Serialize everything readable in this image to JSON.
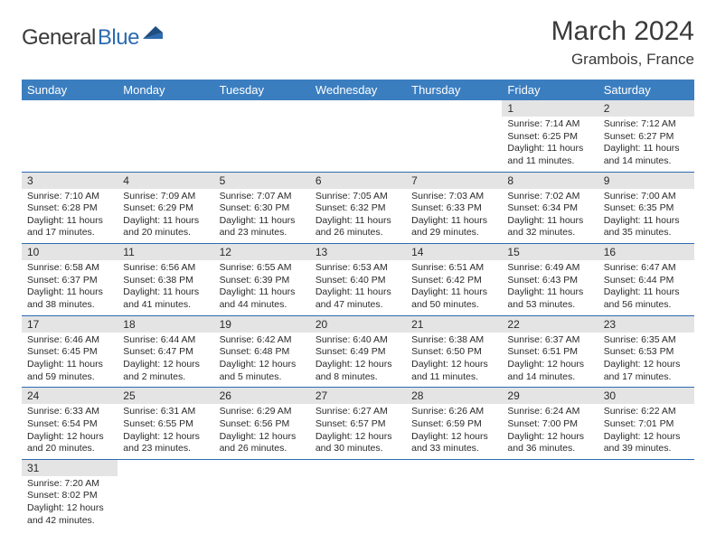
{
  "logo": {
    "general": "General",
    "blue": "Blue"
  },
  "title": {
    "month": "March 2024",
    "location": "Grambois, France"
  },
  "weekdays": [
    "Sunday",
    "Monday",
    "Tuesday",
    "Wednesday",
    "Thursday",
    "Friday",
    "Saturday"
  ],
  "colors": {
    "header_bg": "#3b7ec0",
    "header_fg": "#ffffff",
    "daynum_bg": "#e4e4e4",
    "rule": "#2d6bb0",
    "logo_gray": "#3a3a3a",
    "logo_blue": "#2d6bb0"
  },
  "weeks": [
    [
      {
        "n": "",
        "lines": []
      },
      {
        "n": "",
        "lines": []
      },
      {
        "n": "",
        "lines": []
      },
      {
        "n": "",
        "lines": []
      },
      {
        "n": "",
        "lines": []
      },
      {
        "n": "1",
        "lines": [
          "Sunrise: 7:14 AM",
          "Sunset: 6:25 PM",
          "Daylight: 11 hours",
          "and 11 minutes."
        ]
      },
      {
        "n": "2",
        "lines": [
          "Sunrise: 7:12 AM",
          "Sunset: 6:27 PM",
          "Daylight: 11 hours",
          "and 14 minutes."
        ]
      }
    ],
    [
      {
        "n": "3",
        "lines": [
          "Sunrise: 7:10 AM",
          "Sunset: 6:28 PM",
          "Daylight: 11 hours",
          "and 17 minutes."
        ]
      },
      {
        "n": "4",
        "lines": [
          "Sunrise: 7:09 AM",
          "Sunset: 6:29 PM",
          "Daylight: 11 hours",
          "and 20 minutes."
        ]
      },
      {
        "n": "5",
        "lines": [
          "Sunrise: 7:07 AM",
          "Sunset: 6:30 PM",
          "Daylight: 11 hours",
          "and 23 minutes."
        ]
      },
      {
        "n": "6",
        "lines": [
          "Sunrise: 7:05 AM",
          "Sunset: 6:32 PM",
          "Daylight: 11 hours",
          "and 26 minutes."
        ]
      },
      {
        "n": "7",
        "lines": [
          "Sunrise: 7:03 AM",
          "Sunset: 6:33 PM",
          "Daylight: 11 hours",
          "and 29 minutes."
        ]
      },
      {
        "n": "8",
        "lines": [
          "Sunrise: 7:02 AM",
          "Sunset: 6:34 PM",
          "Daylight: 11 hours",
          "and 32 minutes."
        ]
      },
      {
        "n": "9",
        "lines": [
          "Sunrise: 7:00 AM",
          "Sunset: 6:35 PM",
          "Daylight: 11 hours",
          "and 35 minutes."
        ]
      }
    ],
    [
      {
        "n": "10",
        "lines": [
          "Sunrise: 6:58 AM",
          "Sunset: 6:37 PM",
          "Daylight: 11 hours",
          "and 38 minutes."
        ]
      },
      {
        "n": "11",
        "lines": [
          "Sunrise: 6:56 AM",
          "Sunset: 6:38 PM",
          "Daylight: 11 hours",
          "and 41 minutes."
        ]
      },
      {
        "n": "12",
        "lines": [
          "Sunrise: 6:55 AM",
          "Sunset: 6:39 PM",
          "Daylight: 11 hours",
          "and 44 minutes."
        ]
      },
      {
        "n": "13",
        "lines": [
          "Sunrise: 6:53 AM",
          "Sunset: 6:40 PM",
          "Daylight: 11 hours",
          "and 47 minutes."
        ]
      },
      {
        "n": "14",
        "lines": [
          "Sunrise: 6:51 AM",
          "Sunset: 6:42 PM",
          "Daylight: 11 hours",
          "and 50 minutes."
        ]
      },
      {
        "n": "15",
        "lines": [
          "Sunrise: 6:49 AM",
          "Sunset: 6:43 PM",
          "Daylight: 11 hours",
          "and 53 minutes."
        ]
      },
      {
        "n": "16",
        "lines": [
          "Sunrise: 6:47 AM",
          "Sunset: 6:44 PM",
          "Daylight: 11 hours",
          "and 56 minutes."
        ]
      }
    ],
    [
      {
        "n": "17",
        "lines": [
          "Sunrise: 6:46 AM",
          "Sunset: 6:45 PM",
          "Daylight: 11 hours",
          "and 59 minutes."
        ]
      },
      {
        "n": "18",
        "lines": [
          "Sunrise: 6:44 AM",
          "Sunset: 6:47 PM",
          "Daylight: 12 hours",
          "and 2 minutes."
        ]
      },
      {
        "n": "19",
        "lines": [
          "Sunrise: 6:42 AM",
          "Sunset: 6:48 PM",
          "Daylight: 12 hours",
          "and 5 minutes."
        ]
      },
      {
        "n": "20",
        "lines": [
          "Sunrise: 6:40 AM",
          "Sunset: 6:49 PM",
          "Daylight: 12 hours",
          "and 8 minutes."
        ]
      },
      {
        "n": "21",
        "lines": [
          "Sunrise: 6:38 AM",
          "Sunset: 6:50 PM",
          "Daylight: 12 hours",
          "and 11 minutes."
        ]
      },
      {
        "n": "22",
        "lines": [
          "Sunrise: 6:37 AM",
          "Sunset: 6:51 PM",
          "Daylight: 12 hours",
          "and 14 minutes."
        ]
      },
      {
        "n": "23",
        "lines": [
          "Sunrise: 6:35 AM",
          "Sunset: 6:53 PM",
          "Daylight: 12 hours",
          "and 17 minutes."
        ]
      }
    ],
    [
      {
        "n": "24",
        "lines": [
          "Sunrise: 6:33 AM",
          "Sunset: 6:54 PM",
          "Daylight: 12 hours",
          "and 20 minutes."
        ]
      },
      {
        "n": "25",
        "lines": [
          "Sunrise: 6:31 AM",
          "Sunset: 6:55 PM",
          "Daylight: 12 hours",
          "and 23 minutes."
        ]
      },
      {
        "n": "26",
        "lines": [
          "Sunrise: 6:29 AM",
          "Sunset: 6:56 PM",
          "Daylight: 12 hours",
          "and 26 minutes."
        ]
      },
      {
        "n": "27",
        "lines": [
          "Sunrise: 6:27 AM",
          "Sunset: 6:57 PM",
          "Daylight: 12 hours",
          "and 30 minutes."
        ]
      },
      {
        "n": "28",
        "lines": [
          "Sunrise: 6:26 AM",
          "Sunset: 6:59 PM",
          "Daylight: 12 hours",
          "and 33 minutes."
        ]
      },
      {
        "n": "29",
        "lines": [
          "Sunrise: 6:24 AM",
          "Sunset: 7:00 PM",
          "Daylight: 12 hours",
          "and 36 minutes."
        ]
      },
      {
        "n": "30",
        "lines": [
          "Sunrise: 6:22 AM",
          "Sunset: 7:01 PM",
          "Daylight: 12 hours",
          "and 39 minutes."
        ]
      }
    ],
    [
      {
        "n": "31",
        "lines": [
          "Sunrise: 7:20 AM",
          "Sunset: 8:02 PM",
          "Daylight: 12 hours",
          "and 42 minutes."
        ]
      },
      {
        "n": "",
        "lines": []
      },
      {
        "n": "",
        "lines": []
      },
      {
        "n": "",
        "lines": []
      },
      {
        "n": "",
        "lines": []
      },
      {
        "n": "",
        "lines": []
      },
      {
        "n": "",
        "lines": []
      }
    ]
  ]
}
